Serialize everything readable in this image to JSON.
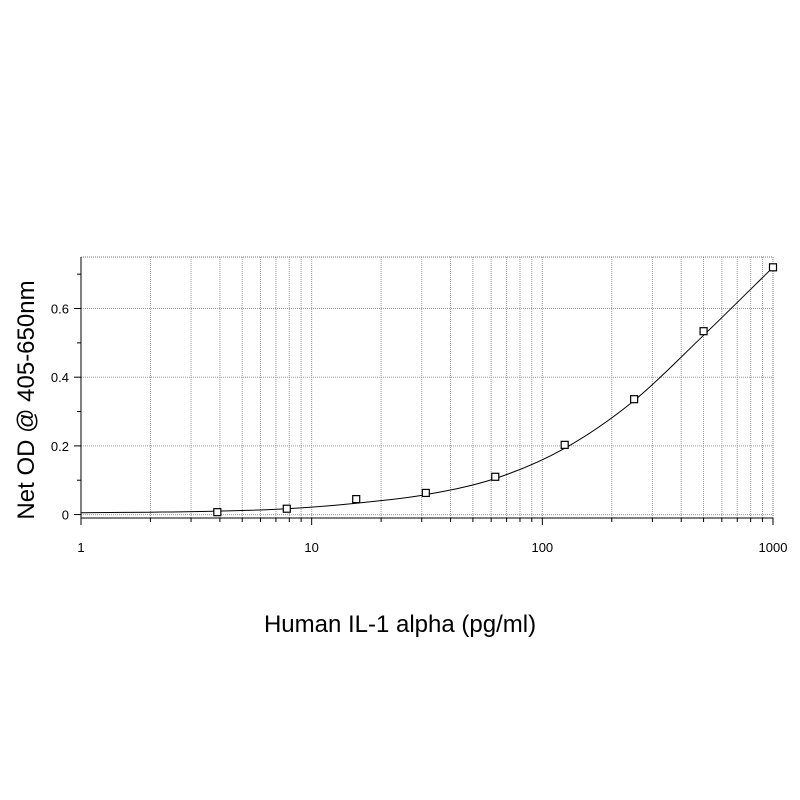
{
  "chart_data": {
    "type": "scatter",
    "title": "",
    "xlabel": "Human IL-1 alpha (pg/ml)",
    "ylabel": "Net OD @ 405-650nm",
    "x_scale": "log",
    "xlim": [
      1,
      1000
    ],
    "ylim": [
      -0.01,
      0.75
    ],
    "grid": true,
    "x_ticks": [
      {
        "value": 1,
        "label": "1"
      },
      {
        "value": 10,
        "label": "10"
      },
      {
        "value": 100,
        "label": "100"
      },
      {
        "value": 1000,
        "label": "1000"
      }
    ],
    "y_ticks": [
      {
        "value": 0,
        "label": "0"
      },
      {
        "value": 0.2,
        "label": "0.2"
      },
      {
        "value": 0.4,
        "label": "0.4"
      },
      {
        "value": 0.6,
        "label": "0.6"
      }
    ],
    "series": [
      {
        "marker": "open-square",
        "x": [
          3.9,
          7.8,
          15.6,
          31.25,
          62.5,
          125,
          250,
          500,
          1000
        ],
        "y": [
          0.007,
          0.017,
          0.045,
          0.063,
          0.11,
          0.203,
          0.336,
          0.534,
          0.72
        ]
      }
    ],
    "fit_curve": {
      "x": [
        1,
        2,
        3.9,
        7.8,
        15.6,
        31.25,
        62.5,
        125,
        250,
        500,
        1000
      ],
      "y": [
        0.005,
        0.007,
        0.01,
        0.017,
        0.033,
        0.058,
        0.105,
        0.193,
        0.332,
        0.522,
        0.72
      ]
    },
    "colors": {
      "grid": "#5fb3c8",
      "line": "#000000",
      "marker": "#000000"
    }
  }
}
